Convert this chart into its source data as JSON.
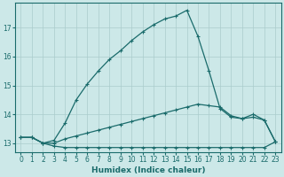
{
  "xlabel": "Humidex (Indice chaleur)",
  "bg_color": "#cce8e8",
  "grid_color": "#aacccc",
  "line_color": "#1a6b6b",
  "xlim": [
    -0.5,
    23.5
  ],
  "ylim": [
    12.7,
    17.85
  ],
  "x": [
    0,
    1,
    2,
    3,
    4,
    5,
    6,
    7,
    8,
    9,
    10,
    11,
    12,
    13,
    14,
    15,
    16,
    17,
    18,
    19,
    20,
    21,
    22,
    23
  ],
  "series1": [
    13.2,
    13.2,
    13.0,
    12.9,
    12.85,
    12.85,
    12.85,
    12.85,
    12.85,
    12.85,
    12.85,
    12.85,
    12.85,
    12.85,
    12.85,
    12.85,
    12.85,
    12.85,
    12.85,
    12.85,
    12.85,
    12.85,
    12.85,
    13.05
  ],
  "series2": [
    13.2,
    13.2,
    13.0,
    13.0,
    13.15,
    13.25,
    13.35,
    13.45,
    13.55,
    13.65,
    13.75,
    13.85,
    13.95,
    14.05,
    14.15,
    14.25,
    14.35,
    14.3,
    14.25,
    13.95,
    13.85,
    13.9,
    13.8,
    13.05
  ],
  "series3": [
    13.2,
    13.2,
    13.0,
    13.1,
    13.7,
    14.5,
    15.05,
    15.5,
    15.9,
    16.2,
    16.55,
    16.85,
    17.1,
    17.3,
    17.4,
    17.6,
    16.7,
    15.5,
    14.2,
    13.9,
    13.85,
    14.0,
    13.8,
    13.05
  ],
  "yticks": [
    13,
    14,
    15,
    16,
    17
  ],
  "xticks": [
    0,
    1,
    2,
    3,
    4,
    5,
    6,
    7,
    8,
    9,
    10,
    11,
    12,
    13,
    14,
    15,
    16,
    17,
    18,
    19,
    20,
    21,
    22,
    23
  ],
  "marker": "+",
  "marker_size": 3,
  "line_width": 0.9,
  "tick_fontsize": 5.5,
  "xlabel_fontsize": 6.5
}
